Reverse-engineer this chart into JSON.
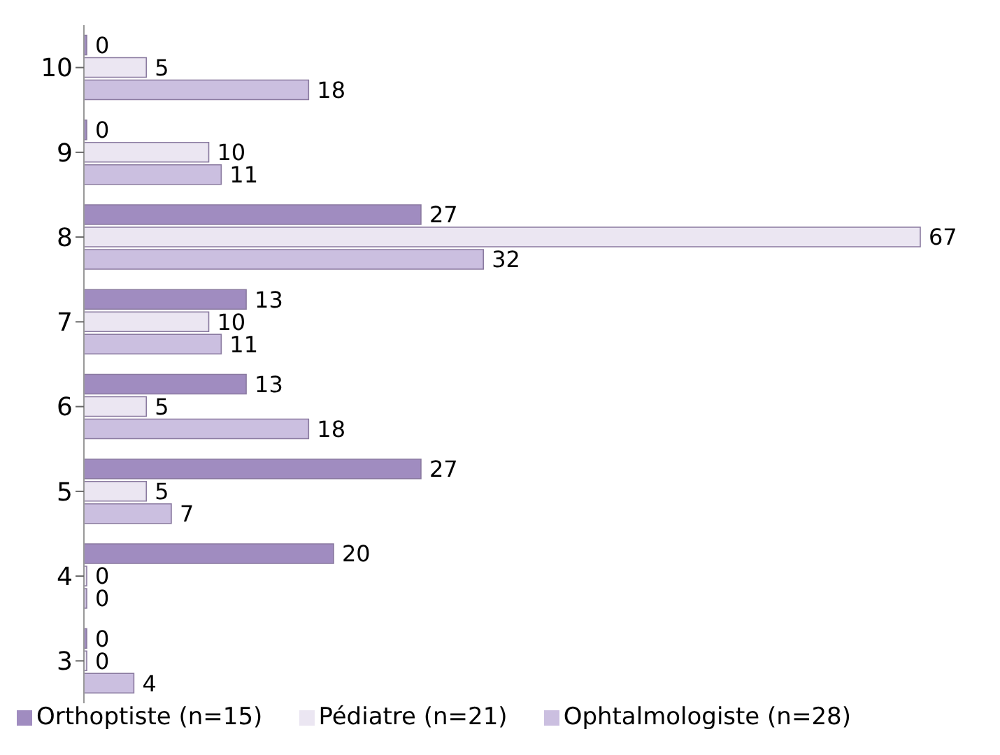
{
  "chart_data": {
    "type": "bar",
    "orientation": "horizontal",
    "categories": [
      "10",
      "9",
      "8",
      "7",
      "6",
      "5",
      "4",
      "3"
    ],
    "series": [
      {
        "name": "Orthoptiste (n=15)",
        "color": "#a08cc0",
        "values": [
          0,
          0,
          27,
          13,
          13,
          27,
          20,
          0
        ]
      },
      {
        "name": "Pédiatre (n=21)",
        "color": "#ebe6f2",
        "values": [
          5,
          10,
          67,
          10,
          5,
          5,
          0,
          0
        ]
      },
      {
        "name": "Ophtalmologiste (n=28)",
        "color": "#cbbfe0",
        "values": [
          18,
          11,
          32,
          11,
          18,
          7,
          0,
          4
        ]
      }
    ],
    "data_labels": true,
    "legend": "bottom",
    "grid": false
  }
}
